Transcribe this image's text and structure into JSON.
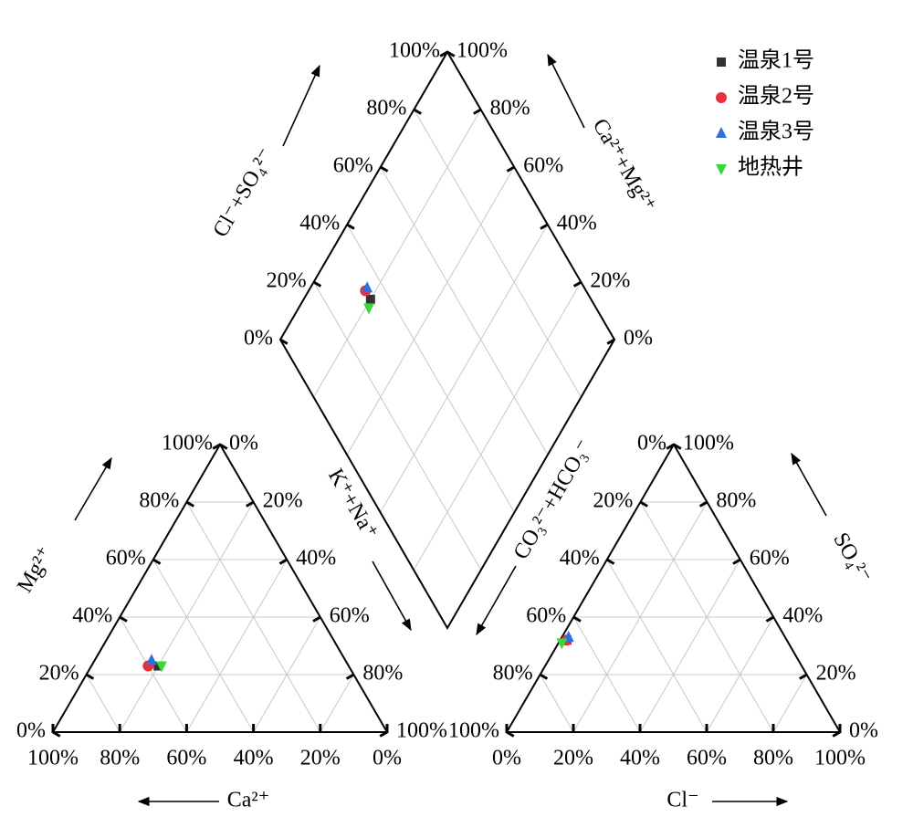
{
  "chart_data": {
    "type": "piper",
    "series": [
      {
        "name": "温泉1号",
        "color": "#333333",
        "marker": "square",
        "cations": [
          57,
          23,
          20
        ],
        "anions": [
          66,
          32,
          2
        ]
      },
      {
        "name": "温泉2号",
        "color": "#e8303a",
        "marker": "circle",
        "cations": [
          60,
          23,
          17
        ],
        "anions": [
          66,
          32,
          2
        ]
      },
      {
        "name": "温泉3号",
        "color": "#2f6fe0",
        "marker": "triangle-up",
        "cations": [
          58,
          25,
          17
        ],
        "anions": [
          65,
          33,
          2
        ]
      },
      {
        "name": "地热井",
        "color": "#3bd63b",
        "marker": "triangle-down",
        "cations": [
          56,
          23,
          21
        ],
        "anions": [
          68,
          31,
          1
        ]
      }
    ],
    "cation_axes": [
      {
        "title": "Ca²⁺",
        "ticks": [
          {
            "value": 0,
            "label": "0%"
          },
          {
            "value": 20,
            "label": "20%"
          },
          {
            "value": 40,
            "label": "40%"
          },
          {
            "value": 60,
            "label": "60%"
          },
          {
            "value": 80,
            "label": "80%"
          },
          {
            "value": 100,
            "label": "100%"
          }
        ]
      },
      {
        "title": "Mg²⁺",
        "ticks": [
          {
            "value": 0,
            "label": "0%"
          },
          {
            "value": 20,
            "label": "20%"
          },
          {
            "value": 40,
            "label": "40%"
          },
          {
            "value": 60,
            "label": "60%"
          },
          {
            "value": 80,
            "label": "80%"
          },
          {
            "value": 100,
            "label": "100%"
          }
        ]
      },
      {
        "ticks": [
          {
            "value": 0,
            "label": "0%"
          },
          {
            "value": 20,
            "label": "20%"
          },
          {
            "value": 40,
            "label": "40%"
          },
          {
            "value": 60,
            "label": "60%"
          },
          {
            "value": 80,
            "label": "80%"
          },
          {
            "value": 100,
            "label": "100%"
          }
        ]
      }
    ],
    "anion_axes": [
      {
        "ticks": [
          {
            "value": 0,
            "label": "0%"
          },
          {
            "value": 20,
            "label": "20%"
          },
          {
            "value": 40,
            "label": "40%"
          },
          {
            "value": 60,
            "label": "60%"
          },
          {
            "value": 80,
            "label": "80%"
          },
          {
            "value": 100,
            "label": "100%"
          }
        ]
      },
      {
        "title": "SO₄²⁻",
        "ticks": [
          {
            "value": 0,
            "label": "0%"
          },
          {
            "value": 20,
            "label": "20%"
          },
          {
            "value": 40,
            "label": "40%"
          },
          {
            "value": 60,
            "label": "60%"
          },
          {
            "value": 80,
            "label": "80%"
          },
          {
            "value": 100,
            "label": "100%"
          }
        ]
      },
      {
        "title": "Cl⁻",
        "ticks": [
          {
            "value": 0,
            "label": "0%"
          },
          {
            "value": 20,
            "label": "20%"
          },
          {
            "value": 40,
            "label": "40%"
          },
          {
            "value": 60,
            "label": "60%"
          },
          {
            "value": 80,
            "label": "80%"
          },
          {
            "value": 100,
            "label": "100%"
          }
        ]
      }
    ],
    "diamond_axes": [
      {
        "title": "Cl⁻+SO₄²⁻",
        "ticks": [
          {
            "value": 0,
            "label": "0%"
          },
          {
            "value": 20,
            "label": "20%"
          },
          {
            "value": 40,
            "label": "40%"
          },
          {
            "value": 60,
            "label": "60%"
          },
          {
            "value": 80,
            "label": "80%"
          },
          {
            "value": 100,
            "label": "100%"
          }
        ]
      },
      {
        "title": "Ca²⁺+Mg²⁺",
        "ticks": [
          {
            "value": 0,
            "label": "0%"
          },
          {
            "value": 20,
            "label": "20%"
          },
          {
            "value": 40,
            "label": "40%"
          },
          {
            "value": 60,
            "label": "60%"
          },
          {
            "value": 80,
            "label": "80%"
          },
          {
            "value": 100,
            "label": "100%"
          }
        ]
      },
      {
        "title": "K⁺+Na⁺"
      },
      {
        "title": "CO₃²⁻+HCO₃⁻"
      }
    ]
  }
}
